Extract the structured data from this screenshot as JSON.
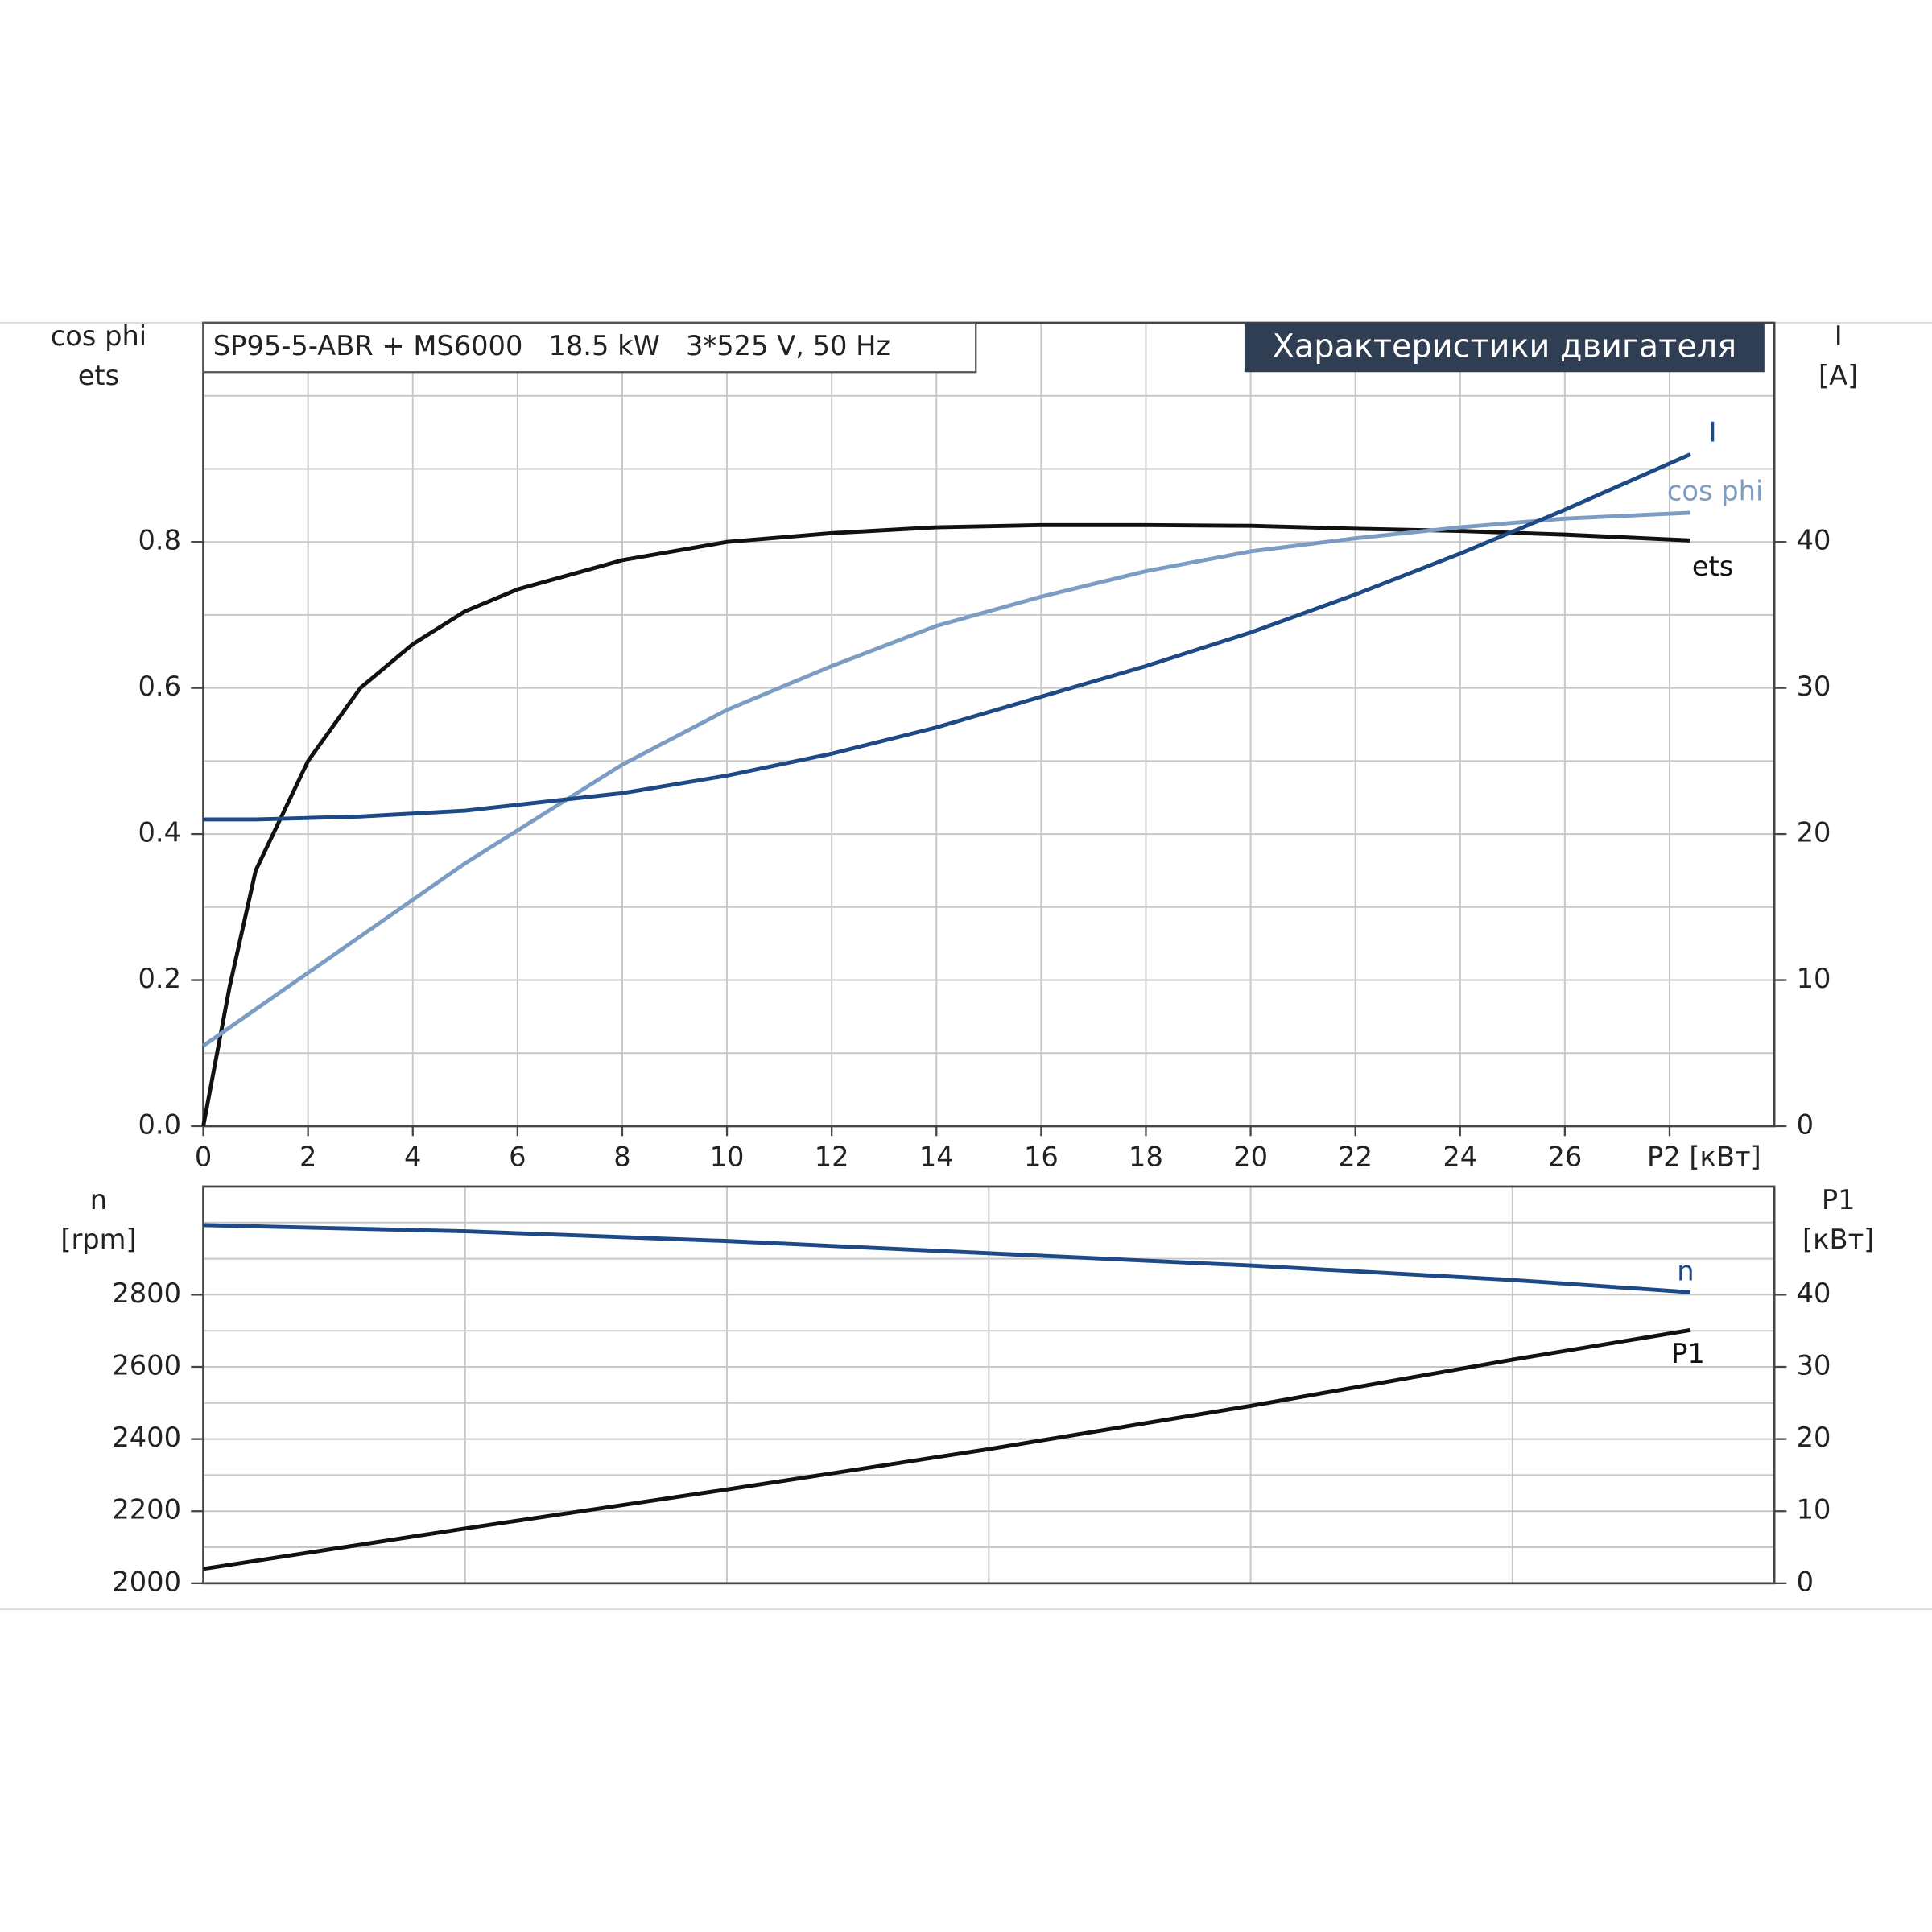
{
  "chart_data": [
    {
      "type": "line",
      "title": "SP95-5-ABR + MS6000   18.5 kW   3*525 V, 50 Hz",
      "subtitle": "Характеристики двигателя",
      "y_label": [
        "cos phi",
        "ets"
      ],
      "y2_label": [
        "I",
        "[A]"
      ],
      "xlim": [
        0,
        30
      ],
      "xticks": [
        0,
        2,
        4,
        6,
        8,
        10,
        12,
        14,
        16,
        18,
        20,
        22,
        24,
        26,
        {
          "value": 28,
          "label": "P2 [кВт]"
        }
      ],
      "ylim": [
        0,
        1.1
      ],
      "yticks": [
        {
          "value": 0,
          "label": "0.0"
        },
        0.2,
        0.4,
        0.6,
        0.8
      ],
      "yminor": [
        0.1,
        0.3,
        0.5,
        0.7,
        0.9,
        1.0
      ],
      "y2lim": [
        0,
        55
      ],
      "y2ticks": [
        0,
        10,
        20,
        30,
        40
      ],
      "grid": true,
      "x": [
        0,
        0.5,
        1,
        2,
        3,
        4,
        5,
        6,
        8,
        10,
        12,
        14,
        16,
        18,
        20,
        22,
        24,
        26,
        28.4
      ],
      "series": [
        {
          "name": "ets",
          "color": "#111111",
          "values": [
            0,
            0.19,
            0.35,
            0.5,
            0.6,
            0.66,
            0.705,
            0.735,
            0.775,
            0.8,
            0.812,
            0.82,
            0.823,
            0.823,
            0.822,
            0.818,
            0.815,
            0.81,
            0.802
          ]
        },
        {
          "name": "cos phi",
          "color": "#7b9dc3",
          "values": [
            0.11,
            0.135,
            0.16,
            0.21,
            0.26,
            0.31,
            0.36,
            0.405,
            0.495,
            0.57,
            0.63,
            0.685,
            0.725,
            0.76,
            0.787,
            0.805,
            0.82,
            0.832,
            0.84
          ]
        },
        {
          "name": "I",
          "color": "#1d4a86",
          "axis": "y2",
          "values": [
            21,
            21,
            21,
            21.1,
            21.2,
            21.4,
            21.6,
            22.0,
            22.8,
            24.0,
            25.5,
            27.3,
            29.4,
            31.5,
            33.8,
            36.4,
            39.2,
            42.2,
            46
          ]
        }
      ]
    },
    {
      "type": "line",
      "y_label": [
        "n",
        "[rpm]"
      ],
      "y2_label": [
        "P1",
        "[кВт]"
      ],
      "xlim": [
        0,
        30
      ],
      "xgrid": [
        0,
        5,
        10,
        15,
        20,
        25,
        30
      ],
      "ylim": [
        2000,
        3100
      ],
      "yticks": [
        2000,
        2200,
        2400,
        2600,
        2800
      ],
      "yminor": [
        2100,
        2300,
        2500,
        2700,
        2900,
        3000
      ],
      "y2lim": [
        0,
        55
      ],
      "y2ticks": [
        0,
        10,
        20,
        30,
        40
      ],
      "grid": true,
      "x": [
        0,
        5,
        10,
        15,
        20,
        25,
        28.4
      ],
      "series": [
        {
          "name": "n",
          "color": "#1d4a86",
          "values": [
            2993,
            2976,
            2949,
            2915,
            2881,
            2841,
            2807
          ]
        },
        {
          "name": "P1",
          "color": "#111111",
          "axis": "y2",
          "values": [
            2.0,
            7.6,
            13.0,
            18.6,
            24.6,
            31.0,
            35.1
          ]
        }
      ]
    }
  ]
}
